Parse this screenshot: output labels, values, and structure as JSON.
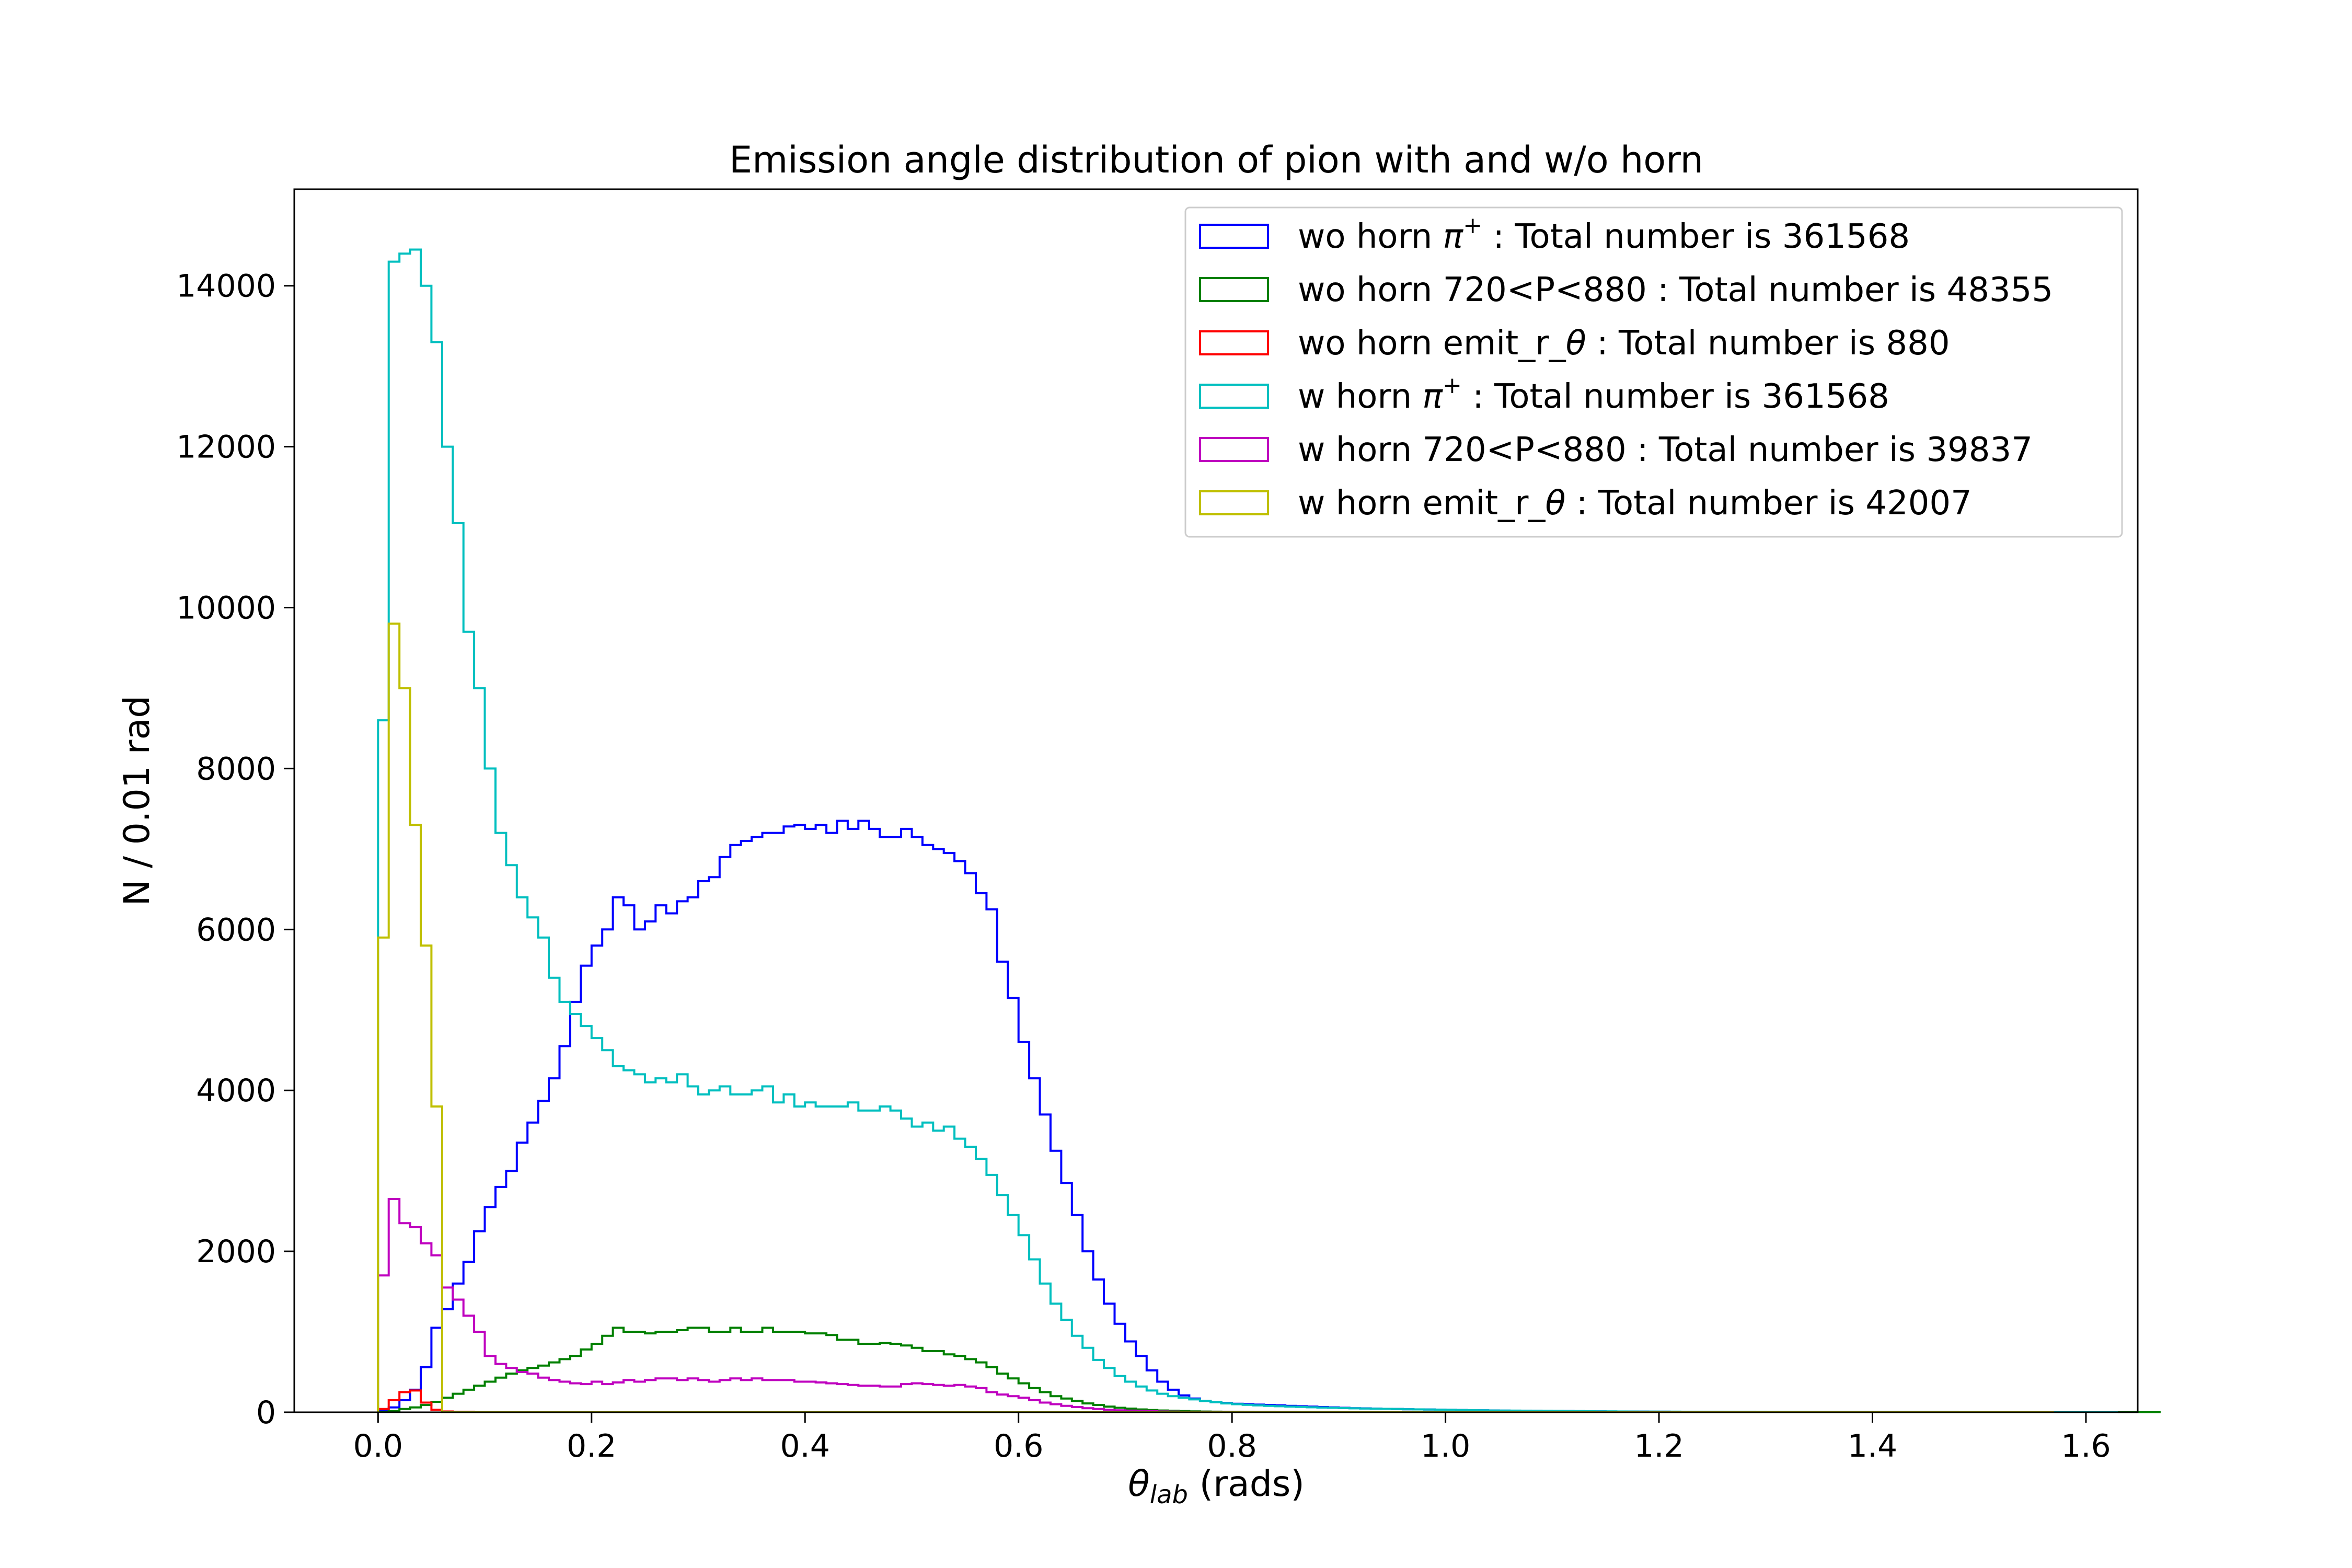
{
  "chart_data": {
    "type": "histogram",
    "title": "Emission angle distribution of pion with and w/o horn",
    "xlabel": {
      "symbol": "θ",
      "subscript": "lab",
      "suffix": " (rads)"
    },
    "ylabel": "N / 0.01 rad",
    "xlim": [
      -0.0785,
      1.6485
    ],
    "ylim": [
      0,
      15200
    ],
    "xticks": [
      0.0,
      0.2,
      0.4,
      0.6,
      0.8,
      1.0,
      1.2,
      1.4,
      1.6
    ],
    "xtick_labels": [
      "0.0",
      "0.2",
      "0.4",
      "0.6",
      "0.8",
      "1.0",
      "1.2",
      "1.4",
      "1.6"
    ],
    "yticks": [
      0,
      2000,
      4000,
      6000,
      8000,
      10000,
      12000,
      14000
    ],
    "ytick_labels": [
      "0",
      "2000",
      "4000",
      "6000",
      "8000",
      "10000",
      "12000",
      "14000"
    ],
    "bin_width": 0.01,
    "x_start": 0.0,
    "legend_position": "upper right",
    "series": [
      {
        "name_parts": [
          "wo horn  ",
          "π",
          "+",
          "  : Total number is 361568"
        ],
        "color": "#0000ff",
        "total": 361568,
        "values": [
          20,
          60,
          150,
          280,
          560,
          1050,
          1280,
          1600,
          1870,
          2250,
          2550,
          2800,
          3000,
          3350,
          3600,
          3870,
          4150,
          4550,
          5100,
          5550,
          5800,
          6000,
          6400,
          6300,
          6000,
          6100,
          6300,
          6200,
          6350,
          6400,
          6600,
          6650,
          6900,
          7050,
          7100,
          7150,
          7200,
          7200,
          7280,
          7300,
          7250,
          7300,
          7200,
          7350,
          7250,
          7350,
          7250,
          7150,
          7150,
          7250,
          7150,
          7050,
          7000,
          6950,
          6850,
          6700,
          6450,
          6250,
          5600,
          5150,
          4600,
          4150,
          3700,
          3250,
          2850,
          2450,
          2000,
          1650,
          1350,
          1100,
          880,
          700,
          520,
          380,
          280,
          210,
          170,
          140,
          125,
          115,
          105,
          100,
          95,
          90,
          85,
          80,
          75,
          70,
          65,
          60,
          55,
          50,
          48,
          45,
          42,
          40,
          38,
          36,
          34,
          32,
          30,
          28,
          26,
          24,
          22,
          20,
          19,
          18,
          17,
          16,
          15,
          14,
          13,
          12,
          11,
          10,
          9,
          8,
          8,
          7,
          7,
          6,
          6,
          5,
          5,
          5,
          4,
          4,
          4,
          3,
          3,
          3,
          3,
          2,
          2,
          2,
          2,
          2,
          1,
          1,
          1,
          1,
          1,
          1,
          1,
          1,
          1,
          1,
          0,
          0,
          0,
          0,
          0,
          0,
          0,
          0,
          0,
          0,
          0,
          0,
          0,
          0
        ]
      },
      {
        "name_parts": [
          "wo horn  720<P<880 : Total number is 48355"
        ],
        "color": "#008000",
        "total": 48355,
        "values": [
          5,
          15,
          40,
          60,
          90,
          130,
          180,
          230,
          280,
          330,
          380,
          430,
          480,
          520,
          550,
          580,
          620,
          660,
          700,
          780,
          850,
          950,
          1050,
          1000,
          1000,
          980,
          1000,
          1000,
          1020,
          1050,
          1050,
          1000,
          1000,
          1050,
          1000,
          1000,
          1050,
          1000,
          1000,
          1000,
          980,
          980,
          960,
          900,
          900,
          850,
          850,
          860,
          850,
          830,
          800,
          760,
          760,
          720,
          700,
          660,
          620,
          560,
          480,
          420,
          360,
          300,
          250,
          200,
          170,
          140,
          110,
          90,
          70,
          55,
          45,
          35,
          28,
          22,
          18,
          14,
          11,
          9,
          7,
          6,
          5,
          4,
          3,
          3,
          2,
          2,
          1,
          1,
          1,
          1,
          0,
          0,
          0,
          0,
          0,
          0,
          0,
          0,
          0,
          0,
          0,
          0,
          0,
          0,
          0,
          0,
          0,
          0,
          0,
          0,
          0,
          0,
          0,
          0,
          0,
          0,
          0,
          0,
          0,
          0,
          0,
          0,
          0,
          0,
          0,
          0,
          0,
          0,
          0,
          0,
          0,
          0,
          0,
          0,
          0,
          0,
          0,
          0,
          0,
          0,
          0,
          0,
          0,
          0,
          0,
          0,
          0,
          0,
          0,
          0,
          0,
          0,
          0,
          0,
          0,
          0,
          0,
          0,
          0,
          0,
          0,
          0,
          0,
          0,
          0,
          0,
          0
        ]
      },
      {
        "name_parts": [
          "wo horn  emit_r_",
          "θ",
          " : Total number is 880"
        ],
        "color": "#ff0000",
        "total": 880,
        "values": [
          40,
          150,
          250,
          270,
          120,
          30,
          10,
          5,
          5,
          0,
          0,
          0,
          0,
          0,
          0,
          0,
          0,
          0,
          0,
          0,
          0,
          0,
          0,
          0,
          0,
          0,
          0,
          0,
          0,
          0,
          0,
          0,
          0,
          0,
          0,
          0,
          0,
          0,
          0,
          0,
          0,
          0,
          0,
          0,
          0,
          0,
          0,
          0,
          0,
          0,
          0,
          0,
          0,
          0,
          0,
          0,
          0,
          0,
          0,
          0,
          0,
          0,
          0,
          0,
          0,
          0,
          0,
          0,
          0,
          0,
          0,
          0,
          0,
          0,
          0,
          0,
          0,
          0,
          0,
          0,
          0,
          0,
          0,
          0,
          0,
          0,
          0,
          0,
          0,
          0,
          0,
          0,
          0,
          0,
          0,
          0,
          0,
          0,
          0,
          0,
          0,
          0,
          0,
          0,
          0,
          0,
          0,
          0,
          0,
          0,
          0,
          0,
          0,
          0,
          0,
          0,
          0,
          0,
          0,
          0,
          0,
          0,
          0,
          0,
          0,
          0,
          0,
          0,
          0,
          0,
          0,
          0,
          0,
          0,
          0,
          0,
          0,
          0,
          0,
          0,
          0,
          0,
          0,
          0,
          0,
          0,
          0,
          0,
          0,
          0,
          0,
          0,
          0,
          0,
          0,
          0,
          0
        ]
      },
      {
        "name_parts": [
          "w horn  ",
          "π",
          "+",
          "  : Total number is 361568"
        ],
        "color": "#00bfbf",
        "total": 361568,
        "values": [
          8600,
          14300,
          14400,
          14450,
          14000,
          13300,
          12000,
          11050,
          9700,
          9000,
          8000,
          7200,
          6800,
          6400,
          6150,
          5900,
          5400,
          5100,
          4950,
          4800,
          4650,
          4500,
          4300,
          4250,
          4200,
          4100,
          4150,
          4100,
          4200,
          4050,
          3950,
          4000,
          4050,
          3950,
          3950,
          4000,
          4050,
          3850,
          3950,
          3800,
          3850,
          3800,
          3800,
          3800,
          3850,
          3750,
          3750,
          3800,
          3750,
          3650,
          3550,
          3600,
          3500,
          3550,
          3400,
          3300,
          3150,
          2950,
          2700,
          2450,
          2200,
          1900,
          1600,
          1350,
          1150,
          950,
          800,
          650,
          550,
          450,
          380,
          320,
          270,
          230,
          200,
          180,
          160,
          140,
          125,
          110,
          100,
          92,
          85,
          80,
          75,
          70,
          66,
          62,
          58,
          55,
          52,
          49,
          46,
          44,
          42,
          40,
          38,
          36,
          34,
          32,
          30,
          28,
          26,
          24,
          22,
          21,
          20,
          19,
          18,
          17,
          16,
          15,
          14,
          13,
          12,
          11,
          10,
          9,
          8,
          8,
          7,
          7,
          6,
          6,
          5,
          5,
          5,
          4,
          4,
          4,
          3,
          3,
          3,
          3,
          2,
          2,
          2,
          2,
          2,
          1,
          1,
          1,
          1,
          1,
          1,
          1,
          1,
          1,
          1,
          1,
          0,
          0,
          0,
          0,
          0,
          0,
          0,
          0,
          0,
          0,
          0,
          0,
          0
        ]
      },
      {
        "name_parts": [
          "w horn  720<P<880 : Total number is 39837"
        ],
        "color": "#bf00bf",
        "total": 39837,
        "values": [
          1700,
          2650,
          2350,
          2300,
          2100,
          1950,
          1550,
          1400,
          1200,
          1000,
          700,
          600,
          550,
          500,
          480,
          430,
          400,
          380,
          360,
          350,
          380,
          350,
          370,
          400,
          380,
          400,
          420,
          420,
          400,
          420,
          400,
          380,
          400,
          420,
          400,
          420,
          400,
          400,
          400,
          380,
          380,
          370,
          360,
          350,
          340,
          330,
          330,
          320,
          320,
          350,
          360,
          350,
          340,
          330,
          340,
          320,
          300,
          250,
          220,
          200,
          180,
          150,
          120,
          100,
          80,
          65,
          50,
          40,
          30,
          25,
          20,
          16,
          13,
          10,
          8,
          6,
          5,
          4,
          3,
          3,
          2,
          2,
          1,
          1,
          1,
          1,
          0,
          0,
          0,
          0,
          0,
          0,
          0,
          0,
          0,
          0,
          0,
          0,
          0,
          0,
          0,
          0,
          0,
          0,
          0,
          0,
          0,
          0,
          0,
          0,
          0,
          0,
          0,
          0,
          0,
          0,
          0,
          0,
          0,
          0,
          0,
          0,
          0,
          0,
          0,
          0,
          0,
          0,
          0,
          0,
          0,
          0,
          0,
          0,
          0,
          0,
          0,
          0,
          0,
          0,
          0,
          0,
          0,
          0,
          0,
          0,
          0,
          0,
          0,
          0,
          0,
          0,
          0,
          0,
          0,
          0,
          0
        ]
      },
      {
        "name_parts": [
          "w horn  emit_r_",
          "θ",
          " : Total number is 42007"
        ],
        "color": "#bfbf00",
        "total": 42007,
        "values": [
          5900,
          9800,
          9000,
          7300,
          5800,
          3800,
          0,
          0,
          0,
          0,
          0,
          0,
          0,
          0,
          0,
          0,
          0,
          0,
          0,
          0,
          0,
          0,
          0,
          0,
          0,
          0,
          0,
          0,
          0,
          0,
          0,
          0,
          0,
          0,
          0,
          0,
          0,
          0,
          0,
          0,
          0,
          0,
          0,
          0,
          0,
          0,
          0,
          0,
          0,
          0,
          0,
          0,
          0,
          0,
          0,
          0,
          0,
          0,
          0,
          0,
          0,
          0,
          0,
          0,
          0,
          0,
          0,
          0,
          0,
          0,
          0,
          0,
          0,
          0,
          0,
          0,
          0,
          0,
          0,
          0,
          0,
          0,
          0,
          0,
          0,
          0,
          0,
          0,
          0,
          0,
          0,
          0,
          0,
          0,
          0,
          0,
          0,
          0,
          0,
          0,
          0,
          0,
          0,
          0,
          0,
          0,
          0,
          0,
          0,
          0,
          0,
          0,
          0,
          0,
          0,
          0,
          0,
          0,
          0,
          0,
          0,
          0,
          0,
          0,
          0,
          0,
          0,
          0,
          0,
          0,
          0,
          0,
          0,
          0,
          0,
          0,
          0,
          0,
          0,
          0,
          0,
          0,
          0,
          0,
          0,
          0,
          0,
          0,
          0,
          0,
          0,
          0,
          0,
          0,
          0,
          0,
          0
        ]
      }
    ]
  }
}
